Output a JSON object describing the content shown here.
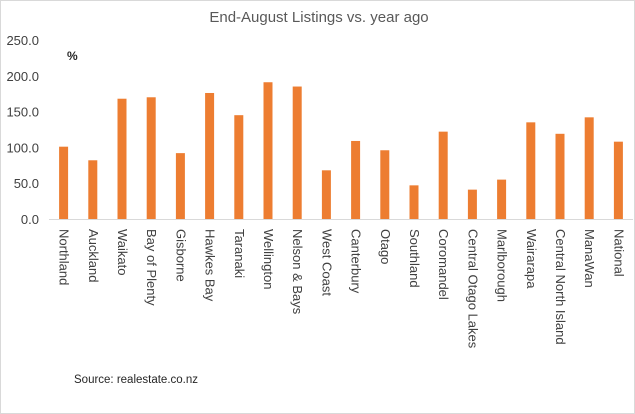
{
  "chart_data": {
    "type": "bar",
    "title": "End-August Listings vs. year ago",
    "unit_label": "%",
    "source": "Source: realestate.co.nz",
    "categories": [
      "Northland",
      "Auckland",
      "Waikato",
      "Bay of Plenty",
      "Gisborne",
      "Hawkes Bay",
      "Taranaki",
      "Wellington",
      "Nelson & Bays",
      "West Coast",
      "Canterbury",
      "Otago",
      "Southland",
      "Coromandel",
      "Central Otago Lakes",
      "Marlborough",
      "Wairarapa",
      "Central North Island",
      "ManaWan",
      "National"
    ],
    "values": [
      101,
      82,
      168,
      170,
      92,
      176,
      145,
      191,
      185,
      68,
      109,
      96,
      47,
      122,
      41,
      55,
      135,
      119,
      142,
      108
    ],
    "ylim": [
      0,
      250
    ],
    "yticks": [
      "0.0",
      "50.0",
      "100.0",
      "150.0",
      "200.0",
      "250.0"
    ],
    "bar_color": "#ED7D31",
    "grid": false
  }
}
